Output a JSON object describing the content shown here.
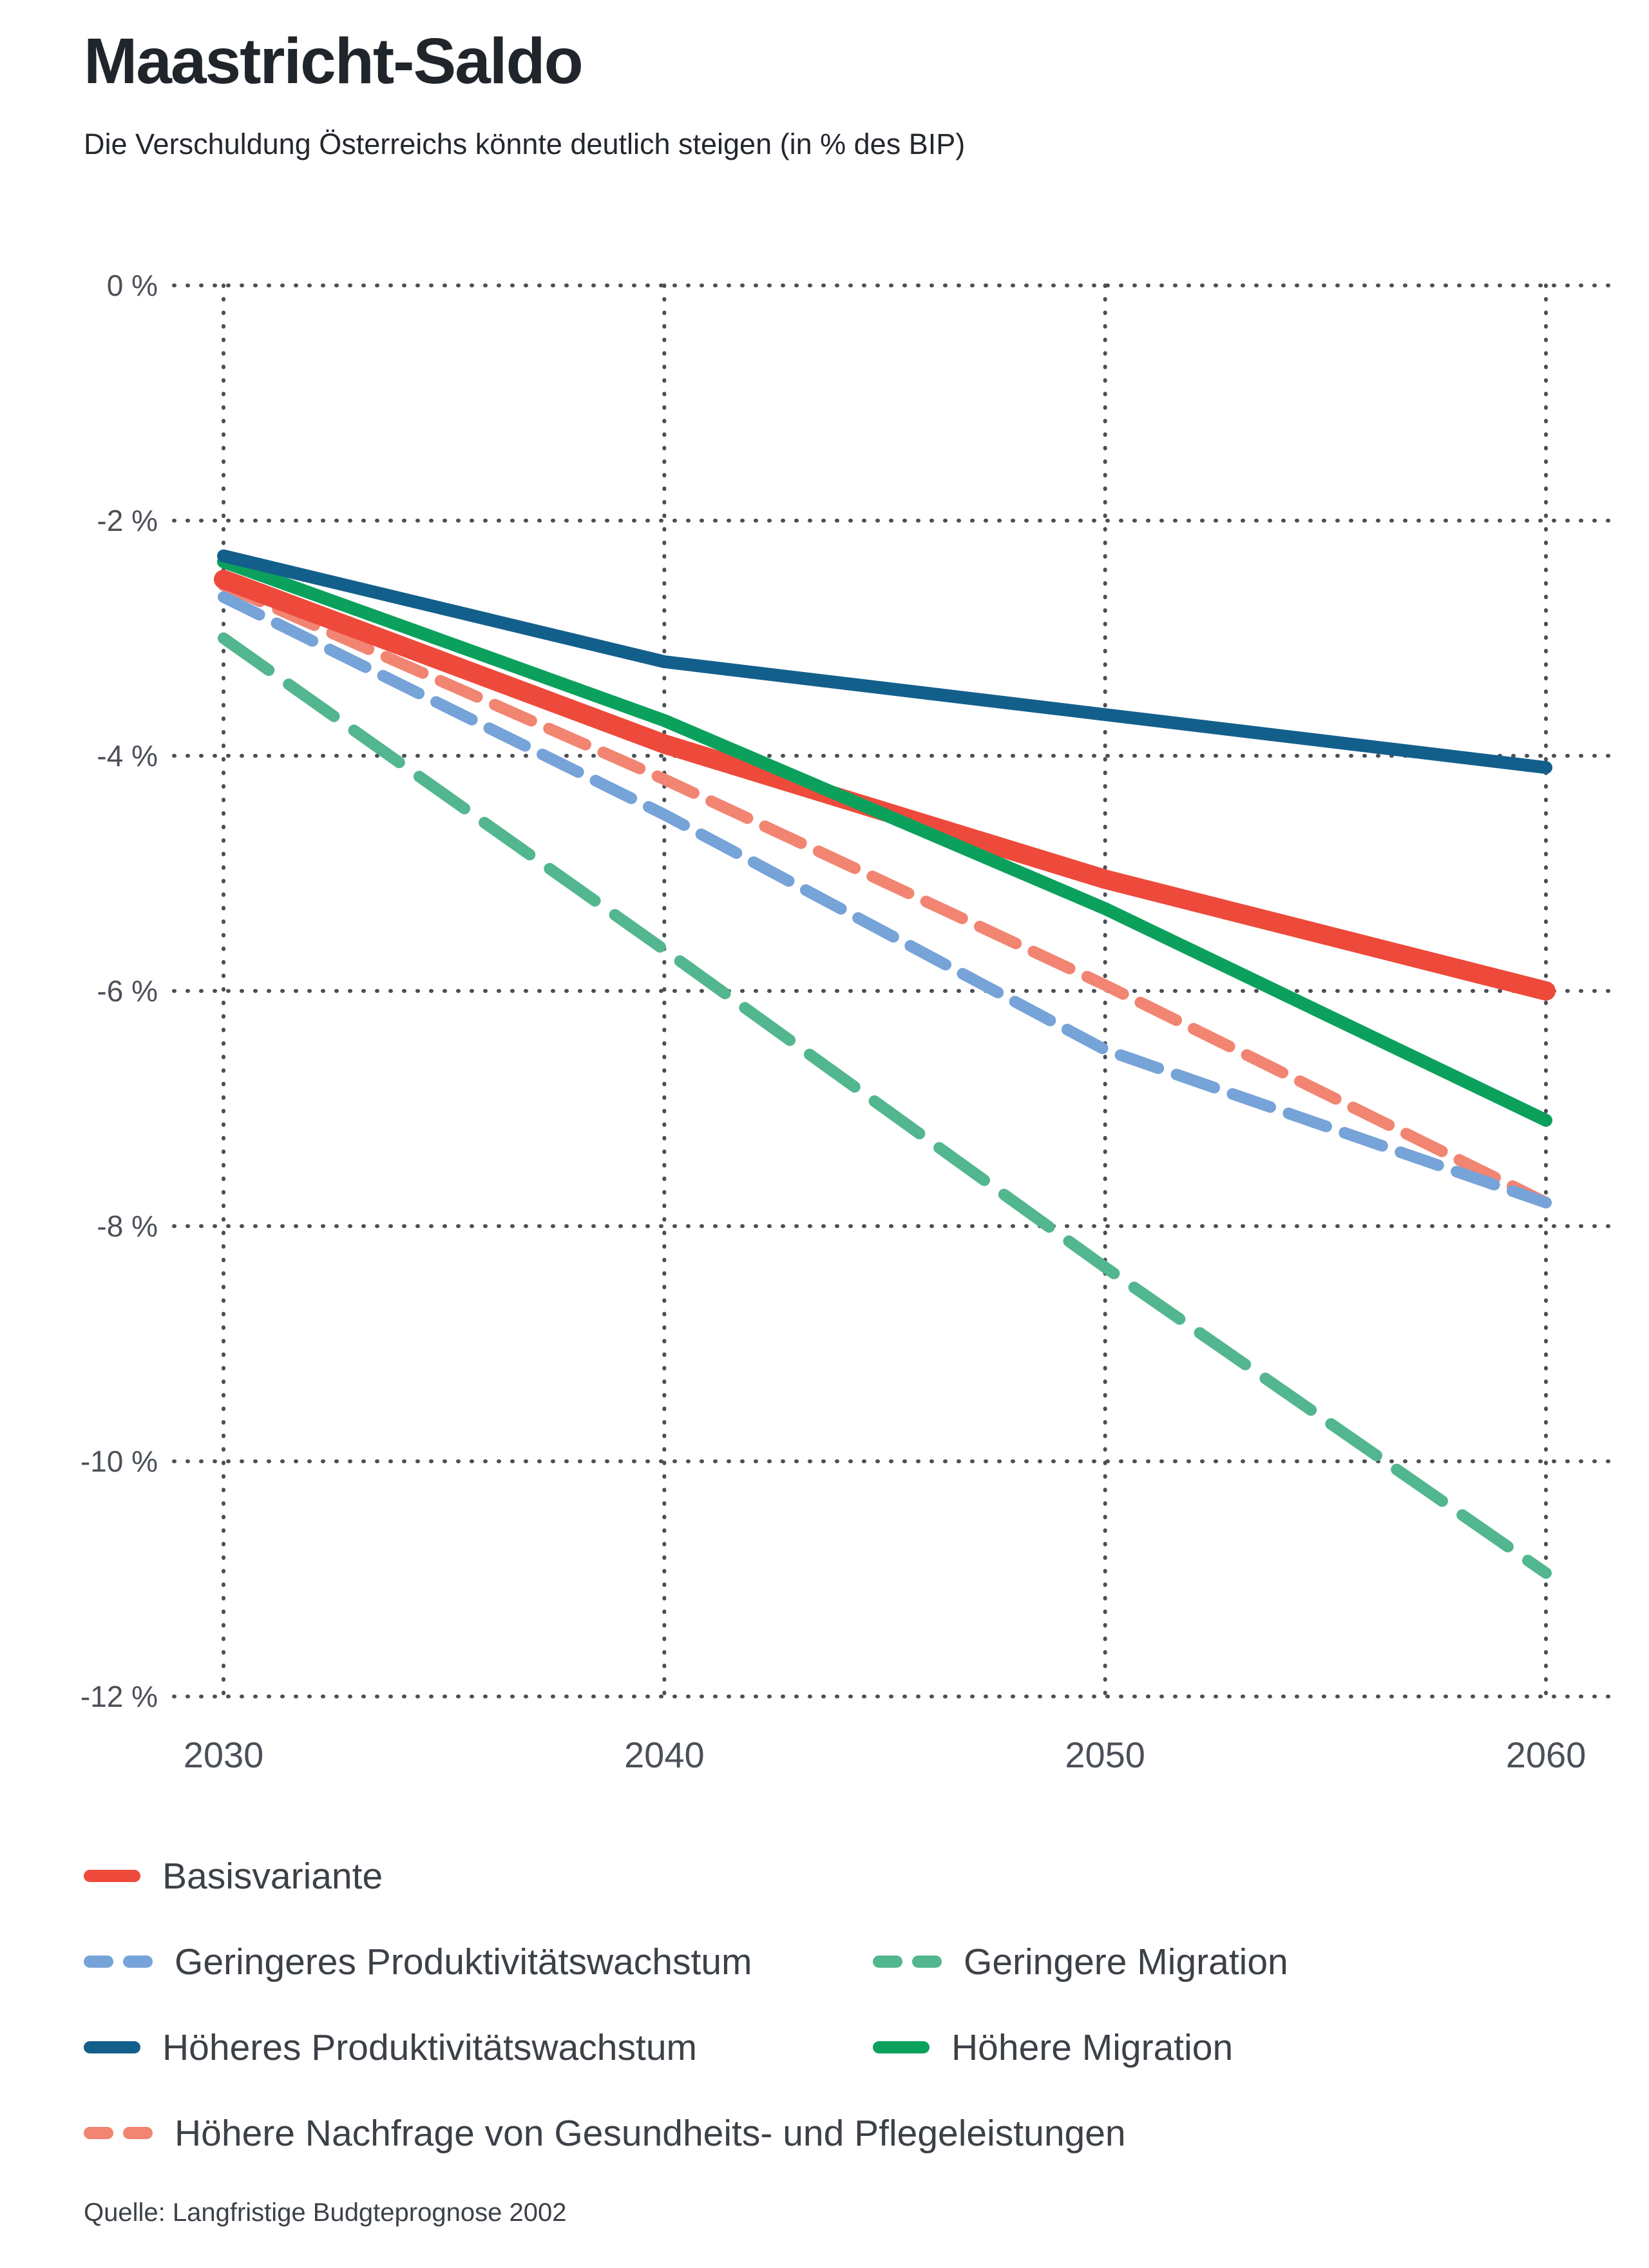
{
  "page": {
    "title": "Maastricht-Saldo",
    "subtitle": "Die Verschuldung Österreichs könnte deutlich steigen (in % des BIP)",
    "source": "Quelle: Langfristige Budgteprognose 2002"
  },
  "chart_data": {
    "type": "line",
    "title": "Maastricht-Saldo",
    "subtitle": "Die Verschuldung Österreichs könnte deutlich steigen (in % des BIP)",
    "xlabel": "",
    "ylabel": "% des BIP",
    "x": [
      2030,
      2040,
      2050,
      2060
    ],
    "x_tick_labels": [
      "2030",
      "2040",
      "2050",
      "2060"
    ],
    "y_ticks": [
      0,
      -2,
      -4,
      -6,
      -8,
      -10,
      -12
    ],
    "y_tick_labels": [
      "0 %",
      "-2 %",
      "-4 %",
      "-6 %",
      "-8 %",
      "-10 %",
      "-12 %"
    ],
    "ylim": [
      -12,
      0
    ],
    "grid": "dotted",
    "legend_position": "bottom",
    "series": [
      {
        "name": "Basisvariante",
        "color": "#ed4a3b",
        "style": "solid",
        "values": [
          -2.5,
          -3.9,
          -5.05,
          -6.0
        ]
      },
      {
        "name": "Geringeres Produktivitätswachstum",
        "color": "#76a3d8",
        "style": "dashed",
        "values": [
          -2.65,
          -4.5,
          -6.5,
          -7.8
        ]
      },
      {
        "name": "Geringere Migration",
        "color": "#52b68f",
        "style": "dashed",
        "values": [
          -3.0,
          -5.65,
          -8.35,
          -10.95
        ]
      },
      {
        "name": "Höheres Produktivitätswachstum",
        "color": "#135f8c",
        "style": "solid",
        "values": [
          -2.3,
          -3.2,
          -3.65,
          -4.1
        ]
      },
      {
        "name": "Höhere Migration",
        "color": "#0ba15c",
        "style": "solid",
        "values": [
          -2.35,
          -3.7,
          -5.3,
          -7.1
        ]
      },
      {
        "name": "Höhere Nachfrage von Gesundheits- und Pflegeleistungen",
        "color": "#f28472",
        "style": "dashed",
        "values": [
          -2.55,
          -4.2,
          -5.95,
          -7.8
        ]
      }
    ]
  },
  "legend": {
    "items": [
      {
        "label": "Basisvariante",
        "series": 0
      },
      {
        "label": "Geringeres Produktivitätswachstum",
        "series": 1
      },
      {
        "label": "Geringere Migration",
        "series": 2
      },
      {
        "label": "Höheres Produktivitätswachstum",
        "series": 3
      },
      {
        "label": "Höhere Migration",
        "series": 4
      },
      {
        "label": "Höhere Nachfrage von Gesundheits- und Pflegeleistungen",
        "series": 5
      }
    ]
  },
  "colors": {
    "background": "#ffffff",
    "title_text": "#20242b",
    "tick_text": "#4b5058",
    "grid": "#4b4f55",
    "legend_text": "#3c4147"
  }
}
